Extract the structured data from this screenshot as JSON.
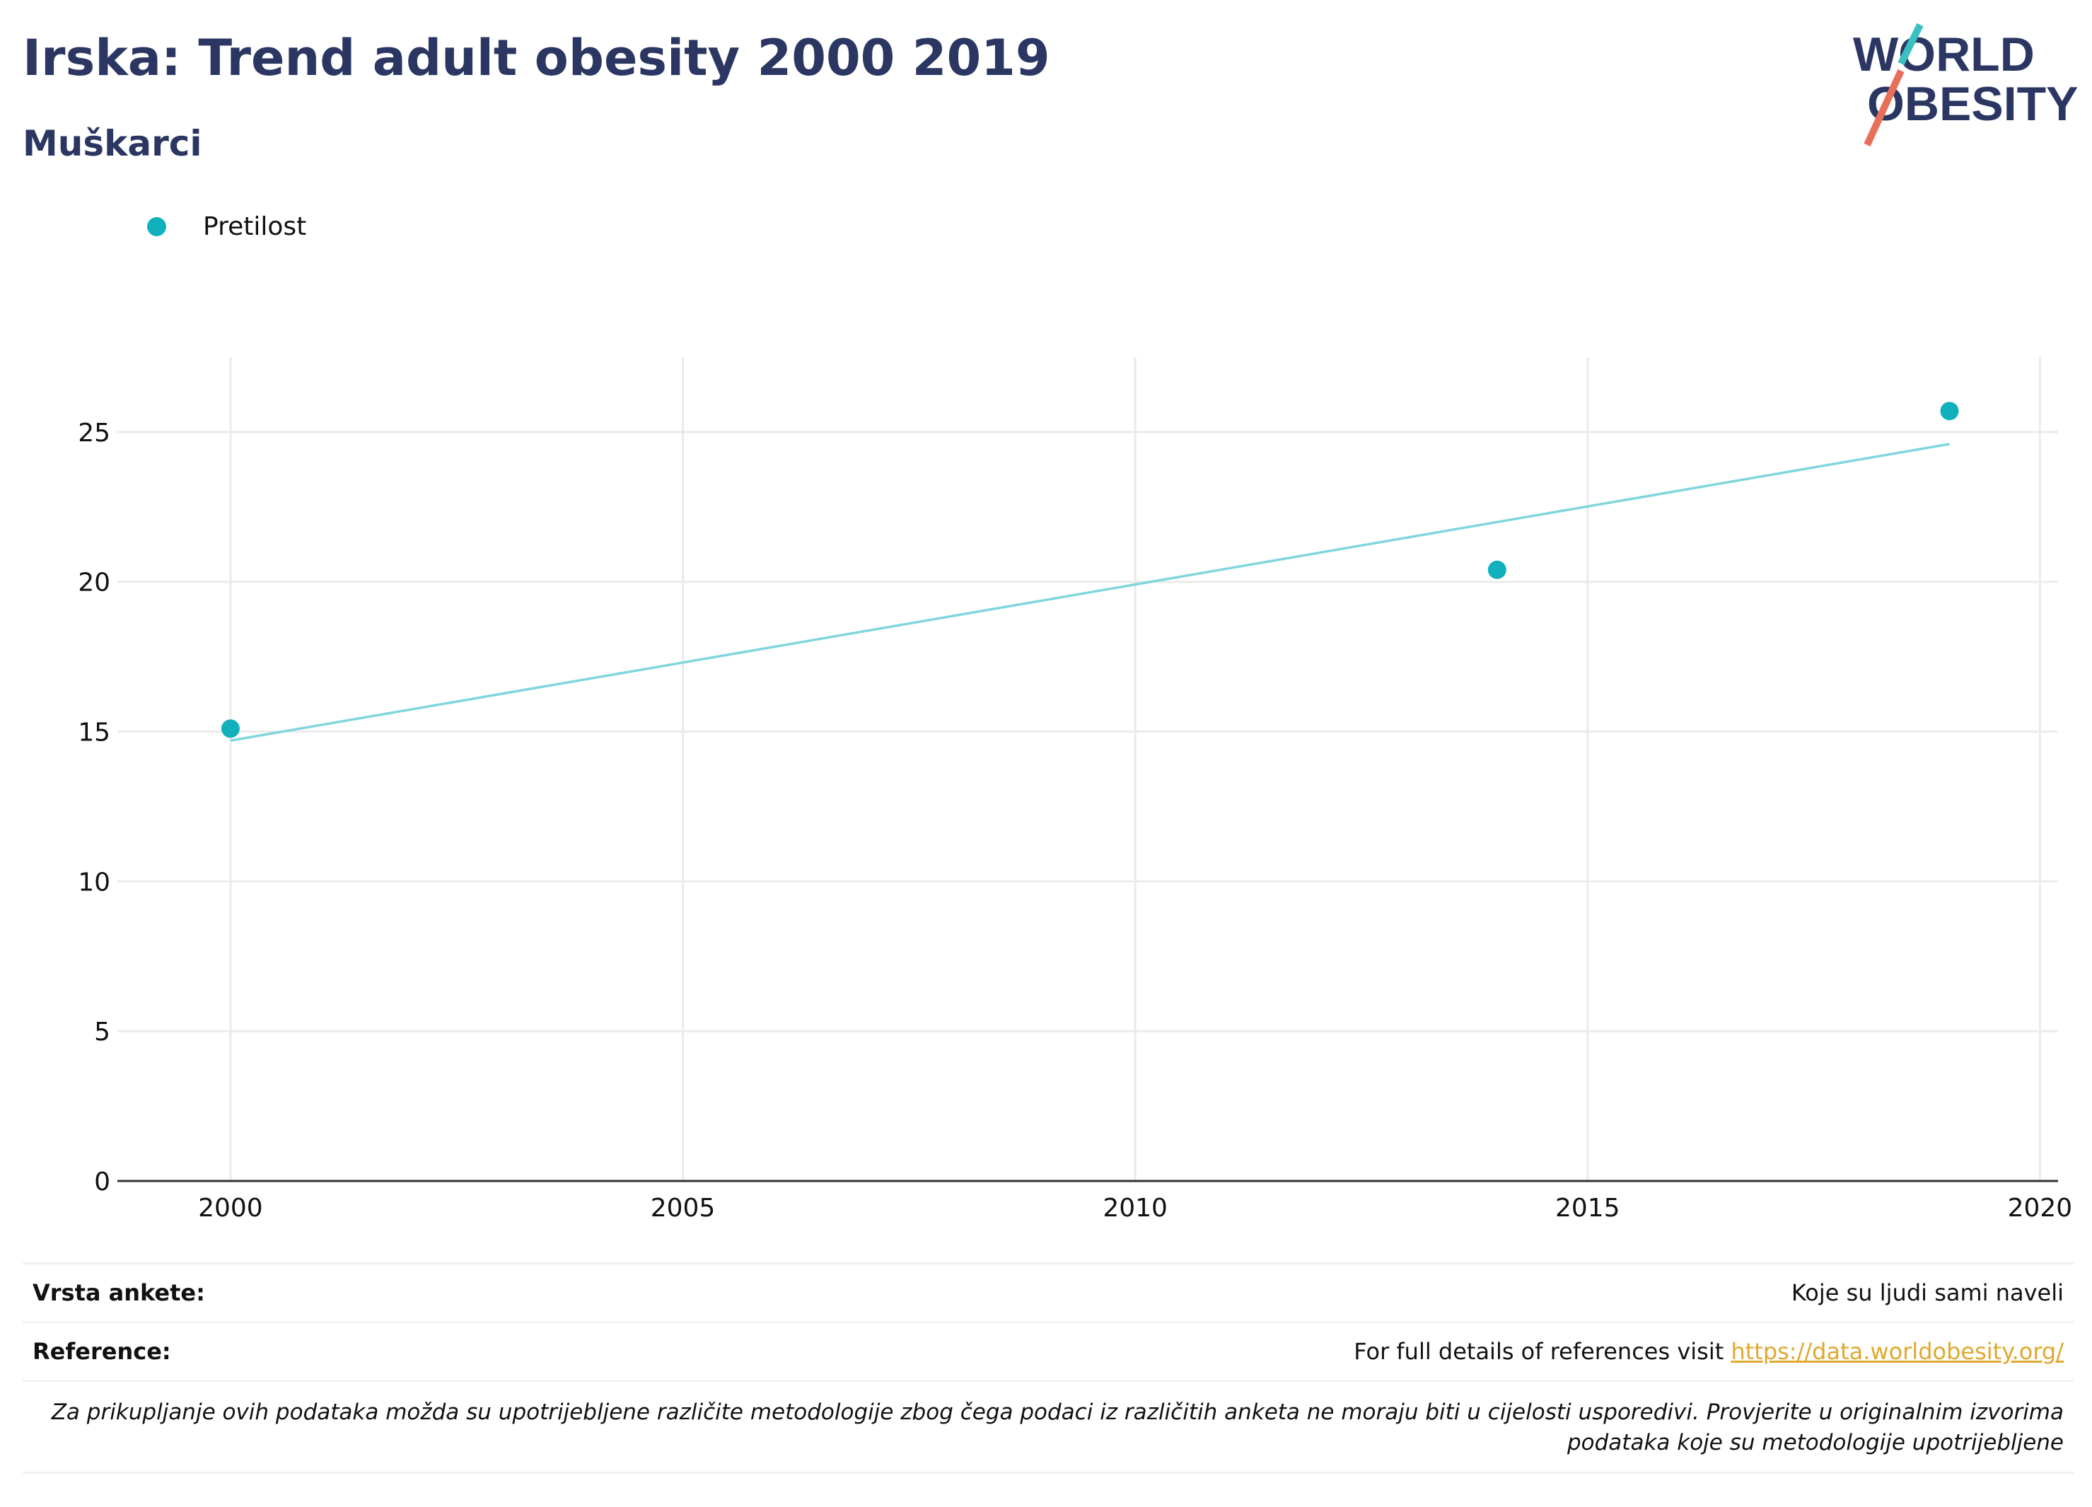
{
  "header": {
    "title": "Irska: Trend adult obesity 2000 2019",
    "subtitle": "Muškarci"
  },
  "logo": {
    "line1": "WORLD",
    "line2": "OBESITY"
  },
  "colors": {
    "series": "#10b1bd",
    "trend": "#7fd6dc",
    "title": "#2b3762",
    "link": "#e0a82e"
  },
  "chart_data": {
    "type": "scatter",
    "series": [
      {
        "name": "Pretilost",
        "points": [
          {
            "x": 2000,
            "y": 15.1
          },
          {
            "x": 2014,
            "y": 20.4
          },
          {
            "x": 2019,
            "y": 25.7
          }
        ]
      }
    ],
    "trendline": [
      {
        "x": 2000,
        "y": 14.7
      },
      {
        "x": 2019,
        "y": 24.6
      }
    ],
    "x_ticks": [
      2000,
      2005,
      2010,
      2015,
      2020
    ],
    "y_ticks": [
      0,
      5,
      10,
      15,
      20,
      25
    ],
    "xlim": [
      1998.75,
      2020.2
    ],
    "ylim": [
      0,
      27.5
    ],
    "grid": true,
    "legend_position": "top-left"
  },
  "info": {
    "survey_label": "Vrsta ankete:",
    "survey_value": "Koje su ljudi sami naveli",
    "ref_label": "Reference:",
    "ref_text": "For full details of references visit ",
    "ref_link": "https://data.worldobesity.org/",
    "note": "Za prikupljanje ovih podataka možda su upotrijebljene različite metodologije zbog čega podaci iz različitih anketa ne moraju biti u cijelosti usporedivi. Provjerite u originalnim izvorima podataka koje su metodologije upotrijebljene"
  }
}
